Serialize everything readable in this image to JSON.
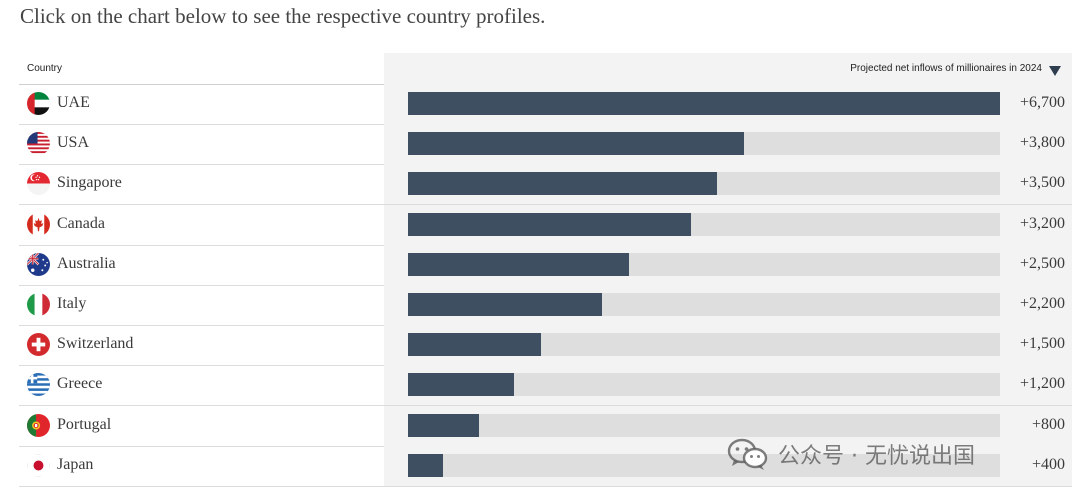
{
  "intro_text": "Click on the chart below to see the respective country profiles.",
  "header": {
    "country_label": "Country",
    "metric_label": "Projected net inflows of millionaires in 2024",
    "sort_icon": "sort-descending-icon"
  },
  "colors": {
    "bar": "#3d4f60",
    "track": "#dedede",
    "panel": "#f3f3f3"
  },
  "chart_data": {
    "type": "bar",
    "orientation": "horizontal",
    "categories": [
      "UAE",
      "USA",
      "Singapore",
      "Canada",
      "Australia",
      "Italy",
      "Switzerland",
      "Greece",
      "Portugal",
      "Japan"
    ],
    "values": [
      6700,
      3800,
      3500,
      3200,
      2500,
      2200,
      1500,
      1200,
      800,
      400
    ],
    "value_labels": [
      "+6,700",
      "+3,800",
      "+3,500",
      "+3,200",
      "+2,500",
      "+2,200",
      "+1,500",
      "+1,200",
      "+800",
      "+400"
    ],
    "xlim": [
      0,
      6700
    ],
    "ylabel": "Country",
    "xlabel": "Projected net inflows of millionaires in 2024"
  },
  "rows": [
    {
      "country": "UAE",
      "flag_icon": "uae-flag-icon",
      "value_label": "+6,700"
    },
    {
      "country": "USA",
      "flag_icon": "usa-flag-icon",
      "value_label": "+3,800"
    },
    {
      "country": "Singapore",
      "flag_icon": "singapore-flag-icon",
      "value_label": "+3,500"
    },
    {
      "country": "Canada",
      "flag_icon": "canada-flag-icon",
      "value_label": "+3,200"
    },
    {
      "country": "Australia",
      "flag_icon": "australia-flag-icon",
      "value_label": "+2,500"
    },
    {
      "country": "Italy",
      "flag_icon": "italy-flag-icon",
      "value_label": "+2,200"
    },
    {
      "country": "Switzerland",
      "flag_icon": "switzerland-flag-icon",
      "value_label": "+1,500"
    },
    {
      "country": "Greece",
      "flag_icon": "greece-flag-icon",
      "value_label": "+1,200"
    },
    {
      "country": "Portugal",
      "flag_icon": "portugal-flag-icon",
      "value_label": "+800"
    },
    {
      "country": "Japan",
      "flag_icon": "japan-flag-icon",
      "value_label": "+400"
    }
  ],
  "watermark": {
    "text": "公众号 · 无忧说出国",
    "icon": "wechat-icon"
  }
}
